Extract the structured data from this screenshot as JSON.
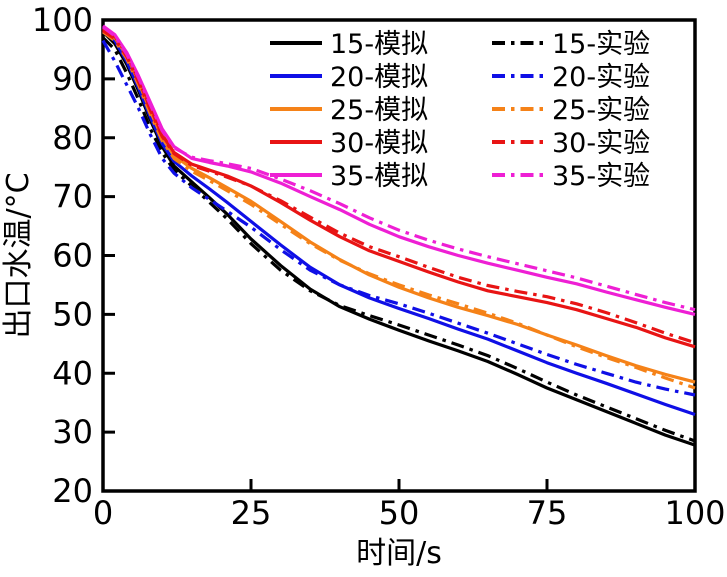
{
  "chart_data": {
    "type": "line",
    "title": "",
    "xlabel": "时间/s",
    "ylabel": "出口水温/°C",
    "xlim": [
      0,
      100
    ],
    "ylim": [
      20,
      100
    ],
    "xticks": [
      0,
      25,
      50,
      75,
      100
    ],
    "yticks": [
      20,
      30,
      40,
      50,
      60,
      70,
      80,
      90,
      100
    ],
    "grid": false,
    "legend_position": "top-inside, two columns (simulation left, experiment right)",
    "frame_color": "#000000",
    "x": [
      0,
      2,
      4,
      6,
      8,
      10,
      12,
      15,
      18,
      21,
      25,
      30,
      35,
      40,
      45,
      50,
      55,
      60,
      65,
      70,
      75,
      80,
      85,
      90,
      95,
      100
    ],
    "series": [
      {
        "name": "15-模拟",
        "style": "solid",
        "color": "#000000",
        "values": [
          98,
          96,
          92.5,
          88,
          83,
          78.5,
          75.2,
          72.5,
          69.8,
          67,
          62.8,
          58.3,
          54.3,
          51.3,
          49.2,
          47.3,
          45.5,
          43.8,
          42,
          39.8,
          37.5,
          35.5,
          33.5,
          31.5,
          29.5,
          27.8
        ]
      },
      {
        "name": "20-模拟",
        "style": "solid",
        "color": "#0F0FE6",
        "values": [
          98,
          96.5,
          93,
          88.5,
          83.5,
          79,
          76,
          73.5,
          71.3,
          69,
          65.8,
          61.8,
          58,
          55,
          52.8,
          51,
          49.3,
          47.5,
          45.8,
          43.8,
          41.8,
          40,
          38.3,
          36.5,
          34.7,
          33
        ]
      },
      {
        "name": "25-模拟",
        "style": "solid",
        "color": "#F58218",
        "values": [
          98.5,
          97,
          94,
          89.5,
          84.5,
          80,
          77,
          74.8,
          73.2,
          71.5,
          69.2,
          65.8,
          62.3,
          59.3,
          56.7,
          54.6,
          52.8,
          51.2,
          49.8,
          48.3,
          46.5,
          44.8,
          43,
          41.3,
          39.8,
          38.5
        ]
      },
      {
        "name": "30-模拟",
        "style": "solid",
        "color": "#E81414",
        "values": [
          98.5,
          97.2,
          94.2,
          89.8,
          85,
          80.5,
          77.5,
          75.5,
          74.5,
          73.5,
          71.8,
          69,
          66,
          63.2,
          60.8,
          59,
          57.2,
          55.5,
          54,
          53,
          52,
          50.8,
          49.3,
          47.8,
          46,
          44.5
        ]
      },
      {
        "name": "35-模拟",
        "style": "solid",
        "color": "#EE1FD4",
        "values": [
          99,
          97.5,
          94.5,
          90.5,
          86,
          81.5,
          78.5,
          76.5,
          75.8,
          75.2,
          74.2,
          72.3,
          70,
          67.8,
          65.3,
          63.2,
          61.5,
          60,
          58.7,
          57.5,
          56.3,
          55.2,
          53.8,
          52.5,
          51.2,
          50
        ]
      },
      {
        "name": "15-实验",
        "style": "dashdot",
        "color": "#000000",
        "values": [
          97,
          95,
          91,
          86.5,
          81.5,
          77.5,
          74.5,
          71.8,
          69,
          66.2,
          62,
          57.5,
          54,
          51.5,
          49.8,
          48.2,
          46.5,
          44.8,
          43,
          40.8,
          38.5,
          36.3,
          34.3,
          32.3,
          30.3,
          28.5
        ]
      },
      {
        "name": "20-实验",
        "style": "dashdot",
        "color": "#0F0FE6",
        "values": [
          96.5,
          93,
          89,
          85,
          80.5,
          76.5,
          74,
          71.5,
          69.5,
          67.5,
          64.8,
          61,
          57.5,
          55,
          53.2,
          51.8,
          50.2,
          48.5,
          46.8,
          45,
          43.2,
          41.5,
          40,
          38.5,
          37.3,
          36.3
        ]
      },
      {
        "name": "25-实验",
        "style": "dashdot",
        "color": "#F58218",
        "values": [
          98,
          96.5,
          93.5,
          89,
          84,
          79.5,
          76.5,
          74.3,
          72.7,
          71,
          68.7,
          65.3,
          62,
          59.2,
          56.9,
          55,
          53.3,
          51.8,
          50.2,
          48.5,
          46.5,
          44.5,
          42.7,
          41,
          39.2,
          37.5
        ]
      },
      {
        "name": "30-实验",
        "style": "dashdot",
        "color": "#E81414",
        "values": [
          98.2,
          96.8,
          93.8,
          89.5,
          84.7,
          80.2,
          77.3,
          75.3,
          74.3,
          73.3,
          71.8,
          69.3,
          66.5,
          63.8,
          61.5,
          59.8,
          58,
          56.3,
          54.9,
          53.9,
          53,
          51.8,
          50.3,
          48.6,
          46.8,
          45.2
        ]
      },
      {
        "name": "35-实验",
        "style": "dashdot",
        "color": "#EE1FD4",
        "values": [
          98.8,
          97.3,
          94.2,
          90.2,
          85.6,
          81.2,
          78.3,
          76.7,
          76.1,
          75.6,
          74.8,
          73,
          71,
          68.8,
          66.4,
          64.3,
          62.6,
          61.1,
          59.8,
          58.6,
          57.4,
          56.2,
          54.8,
          53.4,
          52,
          50.8
        ]
      }
    ]
  }
}
